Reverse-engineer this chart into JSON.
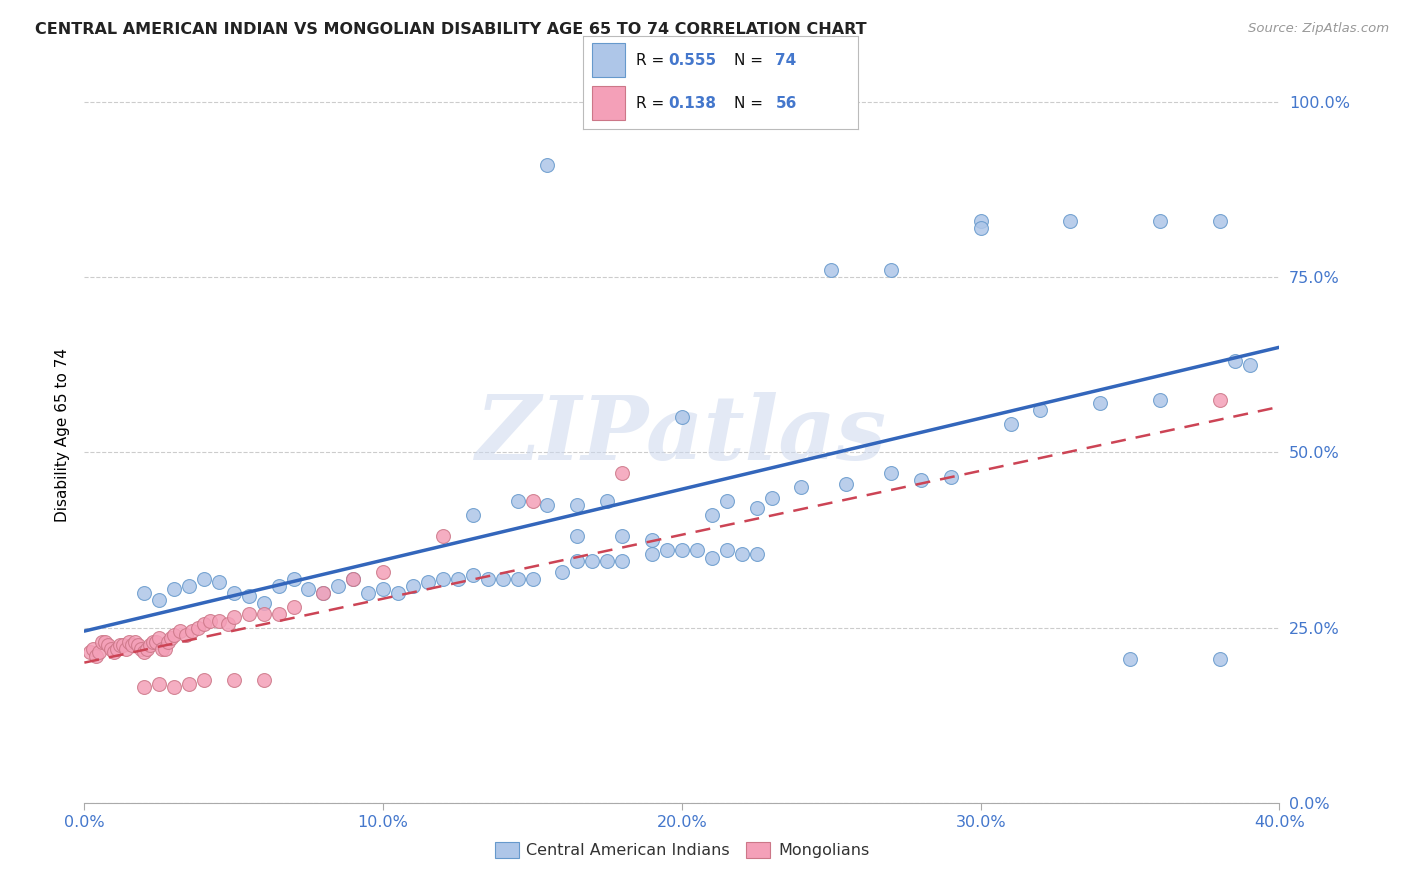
{
  "title": "CENTRAL AMERICAN INDIAN VS MONGOLIAN DISABILITY AGE 65 TO 74 CORRELATION CHART",
  "source": "Source: ZipAtlas.com",
  "ylabel": "Disability Age 65 to 74",
  "xlim": [
    0.0,
    0.4
  ],
  "ylim": [
    0.0,
    1.05
  ],
  "ytick_vals": [
    0.0,
    0.25,
    0.5,
    0.75,
    1.0
  ],
  "xtick_vals": [
    0.0,
    0.1,
    0.2,
    0.3,
    0.4
  ],
  "blue_R": "0.555",
  "blue_N": "74",
  "pink_R": "0.138",
  "pink_N": "56",
  "blue_fill": "#aec6e8",
  "blue_edge": "#6699cc",
  "pink_fill": "#f4a0b8",
  "pink_edge": "#cc7788",
  "blue_line_color": "#3366bb",
  "pink_line_color": "#cc4455",
  "blue_scatter_x": [
    0.155,
    0.3,
    0.3,
    0.33,
    0.36,
    0.38,
    0.25,
    0.27,
    0.02,
    0.025,
    0.03,
    0.035,
    0.04,
    0.045,
    0.05,
    0.055,
    0.06,
    0.065,
    0.07,
    0.075,
    0.08,
    0.085,
    0.09,
    0.095,
    0.1,
    0.105,
    0.11,
    0.115,
    0.12,
    0.125,
    0.13,
    0.135,
    0.14,
    0.145,
    0.15,
    0.16,
    0.165,
    0.17,
    0.175,
    0.18,
    0.19,
    0.195,
    0.2,
    0.205,
    0.21,
    0.215,
    0.22,
    0.225,
    0.13,
    0.145,
    0.155,
    0.165,
    0.175,
    0.2,
    0.165,
    0.18,
    0.19,
    0.21,
    0.215,
    0.225,
    0.23,
    0.24,
    0.255,
    0.27,
    0.28,
    0.29,
    0.31,
    0.32,
    0.34,
    0.36,
    0.385,
    0.39,
    0.35,
    0.38
  ],
  "blue_scatter_y": [
    0.91,
    0.83,
    0.82,
    0.83,
    0.83,
    0.83,
    0.76,
    0.76,
    0.3,
    0.29,
    0.305,
    0.31,
    0.32,
    0.315,
    0.3,
    0.295,
    0.285,
    0.31,
    0.32,
    0.305,
    0.3,
    0.31,
    0.32,
    0.3,
    0.305,
    0.3,
    0.31,
    0.315,
    0.32,
    0.32,
    0.325,
    0.32,
    0.32,
    0.32,
    0.32,
    0.33,
    0.345,
    0.345,
    0.345,
    0.345,
    0.355,
    0.36,
    0.36,
    0.36,
    0.35,
    0.36,
    0.355,
    0.355,
    0.41,
    0.43,
    0.425,
    0.425,
    0.43,
    0.55,
    0.38,
    0.38,
    0.375,
    0.41,
    0.43,
    0.42,
    0.435,
    0.45,
    0.455,
    0.47,
    0.46,
    0.465,
    0.54,
    0.56,
    0.57,
    0.575,
    0.63,
    0.625,
    0.205,
    0.205
  ],
  "pink_scatter_x": [
    0.002,
    0.003,
    0.004,
    0.005,
    0.006,
    0.007,
    0.008,
    0.009,
    0.01,
    0.011,
    0.012,
    0.013,
    0.014,
    0.015,
    0.016,
    0.017,
    0.018,
    0.019,
    0.02,
    0.021,
    0.022,
    0.023,
    0.024,
    0.025,
    0.026,
    0.027,
    0.028,
    0.029,
    0.03,
    0.032,
    0.034,
    0.036,
    0.038,
    0.04,
    0.042,
    0.045,
    0.048,
    0.05,
    0.055,
    0.06,
    0.065,
    0.07,
    0.08,
    0.09,
    0.1,
    0.12,
    0.15,
    0.18,
    0.02,
    0.025,
    0.03,
    0.035,
    0.04,
    0.05,
    0.06,
    0.38
  ],
  "pink_scatter_y": [
    0.215,
    0.22,
    0.21,
    0.215,
    0.23,
    0.23,
    0.225,
    0.22,
    0.215,
    0.22,
    0.225,
    0.225,
    0.22,
    0.23,
    0.225,
    0.23,
    0.225,
    0.22,
    0.215,
    0.22,
    0.225,
    0.23,
    0.23,
    0.235,
    0.22,
    0.22,
    0.23,
    0.235,
    0.24,
    0.245,
    0.24,
    0.245,
    0.25,
    0.255,
    0.26,
    0.26,
    0.255,
    0.265,
    0.27,
    0.27,
    0.27,
    0.28,
    0.3,
    0.32,
    0.33,
    0.38,
    0.43,
    0.47,
    0.165,
    0.17,
    0.165,
    0.17,
    0.175,
    0.175,
    0.175,
    0.575
  ]
}
